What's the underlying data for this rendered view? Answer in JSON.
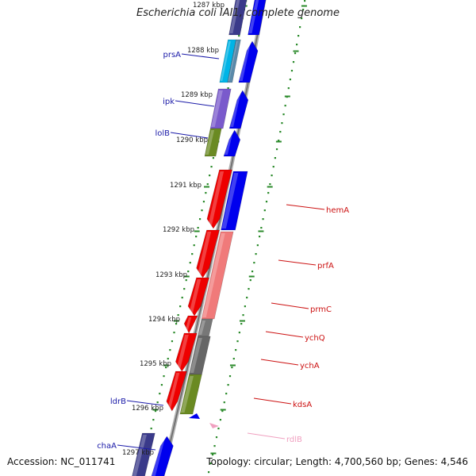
{
  "title": "Escherichia coli IAI1, complete genome",
  "footer": {
    "accession": "Accession: NC_011741",
    "summary": "Topology: circular; Length: 4,700,560 bp; Genes: 4,546"
  },
  "ruler_labels": [
    {
      "text": "1287 kbp"
    },
    {
      "text": "1288 kbp"
    },
    {
      "text": "1289 kbp"
    },
    {
      "text": "1290 kbp"
    },
    {
      "text": "1291 kbp"
    },
    {
      "text": "1292 kbp"
    },
    {
      "text": "1293 kbp"
    },
    {
      "text": "1294 kbp"
    },
    {
      "text": "1295 kbp"
    },
    {
      "text": "1296 kbp"
    },
    {
      "text": "1297 kbp"
    }
  ],
  "gene_labels": [
    {
      "text": "prsA",
      "color": "#1a1aa8"
    },
    {
      "text": "ipk",
      "color": "#1a1aa8"
    },
    {
      "text": "lolB",
      "color": "#1a1aa8"
    },
    {
      "text": "hemA",
      "color": "#cc1111"
    },
    {
      "text": "prfA",
      "color": "#cc1111"
    },
    {
      "text": "prmC",
      "color": "#cc1111"
    },
    {
      "text": "ychQ",
      "color": "#cc1111"
    },
    {
      "text": "ychA",
      "color": "#cc1111"
    },
    {
      "text": "kdsA",
      "color": "#cc1111"
    },
    {
      "text": "ldrB",
      "color": "#1a1aa8"
    },
    {
      "text": "rdlB",
      "color": "#f0a0c0"
    },
    {
      "text": "chaA",
      "color": "#1a1aa8"
    }
  ],
  "colors": {
    "backbone": "#8a8a8a",
    "tick_green": "#2a8a2a",
    "reverse_strand_gene": "#0000ee",
    "forward_strand_gene": "#ee0000"
  }
}
